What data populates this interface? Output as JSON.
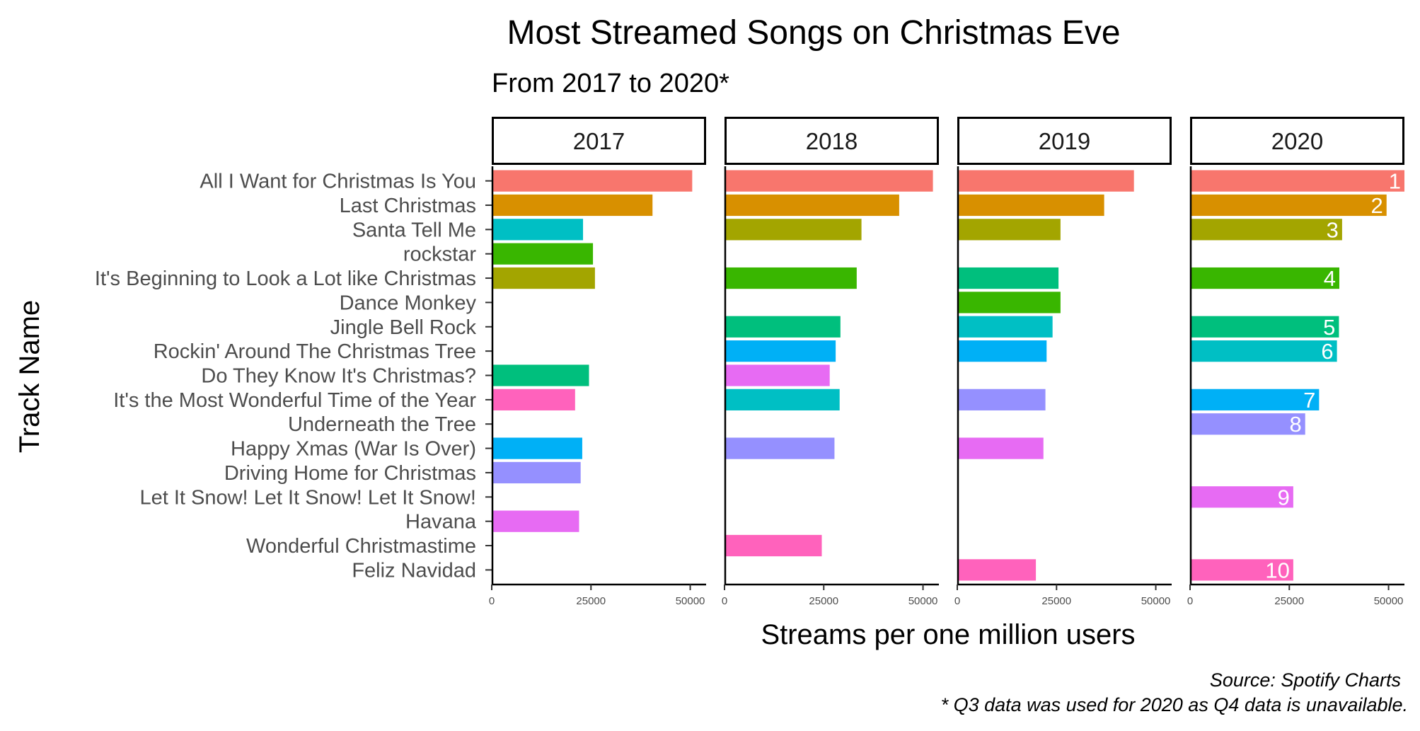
{
  "chart_data": {
    "type": "bar",
    "orientation": "horizontal",
    "facet_by": "year",
    "title": "Most Streamed Songs on Christmas Eve",
    "subtitle": "From 2017 to 2020*",
    "xlabel": "Streams per one million users",
    "ylabel": "Track Name",
    "xlim": [
      0,
      54000
    ],
    "xticks": [
      0,
      25000,
      50000
    ],
    "xtick_labels": [
      "0",
      "25000",
      "50000"
    ],
    "grid": false,
    "legend": "none",
    "caption": [
      "Source: Spotify Charts",
      "* Q3 data was used for 2020 as Q4 data is unavailable."
    ],
    "categories": [
      "All I Want for Christmas Is You",
      "Last Christmas",
      "Santa Tell Me",
      "rockstar",
      "It's Beginning to Look a Lot like Christmas",
      "Dance Monkey",
      "Jingle Bell Rock",
      "Rockin' Around The Christmas Tree",
      "Do They Know It's Christmas?",
      "It's the Most Wonderful Time of the Year",
      "Underneath the Tree",
      "Happy Xmas (War Is Over)",
      "Driving Home for Christmas",
      "Let It Snow! Let It Snow! Let It Snow!",
      "Havana",
      "Wonderful Christmastime ",
      "Feliz Navidad"
    ],
    "palette": [
      "#F8766D",
      "#D89000",
      "#A3A500",
      "#39B600",
      "#00BF7D",
      "#00BFC4",
      "#00B0F6",
      "#9590FF",
      "#E76BF3",
      "#FF62BC"
    ],
    "panels": [
      {
        "label": "2017",
        "bars": [
          {
            "category": "All I Want for Christmas Is You",
            "value": 50500,
            "color": "#F8766D"
          },
          {
            "category": "Last Christmas",
            "value": 40500,
            "color": "#D89000"
          },
          {
            "category": "Santa Tell Me",
            "value": 23000,
            "color": "#00BFC4"
          },
          {
            "category": "rockstar",
            "value": 25500,
            "color": "#39B600"
          },
          {
            "category": "It's Beginning to Look a Lot like Christmas",
            "value": 26000,
            "color": "#A3A500"
          },
          {
            "category": "Do They Know It's Christmas?",
            "value": 24500,
            "color": "#00BF7D"
          },
          {
            "category": "It's the Most Wonderful Time of the Year",
            "value": 21000,
            "color": "#FF62BC"
          },
          {
            "category": "Happy Xmas (War Is Over)",
            "value": 22800,
            "color": "#00B0F6"
          },
          {
            "category": "Driving Home for Christmas",
            "value": 22400,
            "color": "#9590FF"
          },
          {
            "category": "Havana",
            "value": 22000,
            "color": "#E76BF3"
          }
        ]
      },
      {
        "label": "2018",
        "bars": [
          {
            "category": "All I Want for Christmas Is You",
            "value": 52500,
            "color": "#F8766D"
          },
          {
            "category": "Last Christmas",
            "value": 44000,
            "color": "#D89000"
          },
          {
            "category": "Santa Tell Me",
            "value": 34500,
            "color": "#A3A500"
          },
          {
            "category": "It's Beginning to Look a Lot like Christmas",
            "value": 33300,
            "color": "#39B600"
          },
          {
            "category": "Jingle Bell Rock",
            "value": 29200,
            "color": "#00BF7D"
          },
          {
            "category": "Rockin' Around The Christmas Tree",
            "value": 28000,
            "color": "#00B0F6"
          },
          {
            "category": "Do They Know It's Christmas?",
            "value": 26500,
            "color": "#E76BF3"
          },
          {
            "category": "It's the Most Wonderful Time of the Year",
            "value": 29000,
            "color": "#00BFC4"
          },
          {
            "category": "Happy Xmas (War Is Over)",
            "value": 27700,
            "color": "#9590FF"
          },
          {
            "category": "Wonderful Christmastime ",
            "value": 24500,
            "color": "#FF62BC"
          }
        ]
      },
      {
        "label": "2019",
        "bars": [
          {
            "category": "All I Want for Christmas Is You",
            "value": 44500,
            "color": "#F8766D"
          },
          {
            "category": "Last Christmas",
            "value": 37000,
            "color": "#D89000"
          },
          {
            "category": "Santa Tell Me",
            "value": 26000,
            "color": "#A3A500"
          },
          {
            "category": "It's Beginning to Look a Lot like Christmas",
            "value": 25500,
            "color": "#00BF7D"
          },
          {
            "category": "Dance Monkey",
            "value": 26000,
            "color": "#39B600"
          },
          {
            "category": "Jingle Bell Rock",
            "value": 24000,
            "color": "#00BFC4"
          },
          {
            "category": "Rockin' Around The Christmas Tree",
            "value": 22500,
            "color": "#00B0F6"
          },
          {
            "category": "It's the Most Wonderful Time of the Year",
            "value": 22200,
            "color": "#9590FF"
          },
          {
            "category": "Happy Xmas (War Is Over)",
            "value": 21700,
            "color": "#E76BF3"
          },
          {
            "category": "Feliz Navidad",
            "value": 19800,
            "color": "#FF62BC"
          }
        ]
      },
      {
        "label": "2020",
        "bars": [
          {
            "category": "All I Want for Christmas Is You",
            "value": 54000,
            "color": "#F8766D",
            "rank": "1"
          },
          {
            "category": "Last Christmas",
            "value": 49500,
            "color": "#D89000",
            "rank": "2"
          },
          {
            "category": "Santa Tell Me",
            "value": 38300,
            "color": "#A3A500",
            "rank": "3"
          },
          {
            "category": "It's Beginning to Look a Lot like Christmas",
            "value": 37600,
            "color": "#39B600",
            "rank": "4"
          },
          {
            "category": "Jingle Bell Rock",
            "value": 37500,
            "color": "#00BF7D",
            "rank": "5"
          },
          {
            "category": "Rockin' Around The Christmas Tree",
            "value": 37000,
            "color": "#00BFC4",
            "rank": "6"
          },
          {
            "category": "It's the Most Wonderful Time of the Year",
            "value": 32500,
            "color": "#00B0F6",
            "rank": "7"
          },
          {
            "category": "Underneath the Tree",
            "value": 29000,
            "color": "#9590FF",
            "rank": "8"
          },
          {
            "category": "Let It Snow! Let It Snow! Let It Snow!",
            "value": 26000,
            "color": "#E76BF3",
            "rank": "9"
          },
          {
            "category": "Feliz Navidad",
            "value": 26000,
            "color": "#FF62BC",
            "rank": "10"
          }
        ]
      }
    ]
  }
}
